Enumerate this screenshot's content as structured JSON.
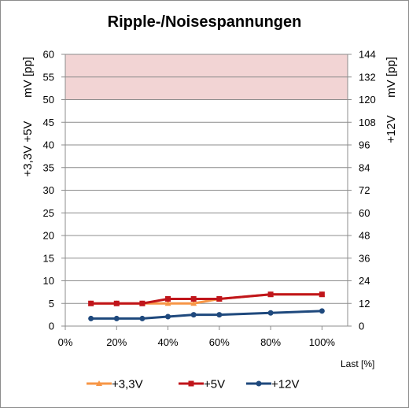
{
  "chart_data": {
    "type": "line",
    "title": "Ripple-/Noisespannungen",
    "xlabel": "Last [%]",
    "ylabel_left_line1": "mV [pp]",
    "ylabel_left_line2": "+3,3V +5V",
    "ylabel_right_line1": "mV [pp]",
    "ylabel_right_line2": "+12V",
    "x_ticks": [
      "0%",
      "20%",
      "40%",
      "60%",
      "80%",
      "100%"
    ],
    "xlim": [
      0,
      110
    ],
    "ylim_left": [
      0,
      60
    ],
    "ylim_right": [
      0,
      144
    ],
    "yticks_left": [
      "0",
      "5",
      "10",
      "15",
      "20",
      "25",
      "30",
      "35",
      "40",
      "45",
      "50",
      "55",
      "60"
    ],
    "yticks_right": [
      "0",
      "12",
      "24",
      "36",
      "48",
      "60",
      "72",
      "84",
      "96",
      "108",
      "120",
      "132",
      "144"
    ],
    "limit_band_left": [
      50,
      60
    ],
    "limit_band_color": "#f2d4d4",
    "grid": true,
    "legend_position": "bottom",
    "series": [
      {
        "name": "+3,3V",
        "axis": "left",
        "color": "#f79646",
        "marker": "triangle",
        "x": [
          10,
          20,
          30,
          40,
          50,
          60,
          80,
          100
        ],
        "y": [
          5,
          5,
          5,
          5,
          5,
          6,
          7,
          7
        ]
      },
      {
        "name": "+5V",
        "axis": "left",
        "color": "#c0151b",
        "marker": "square",
        "x": [
          10,
          20,
          30,
          40,
          50,
          60,
          80,
          100
        ],
        "y": [
          5,
          5,
          5,
          6,
          6,
          6,
          7,
          7
        ]
      },
      {
        "name": "+12V",
        "axis": "right",
        "color": "#1f497d",
        "marker": "circle",
        "x": [
          10,
          20,
          30,
          40,
          50,
          60,
          80,
          100
        ],
        "y": [
          4,
          4,
          4,
          5,
          6,
          6,
          7,
          8
        ]
      }
    ]
  }
}
